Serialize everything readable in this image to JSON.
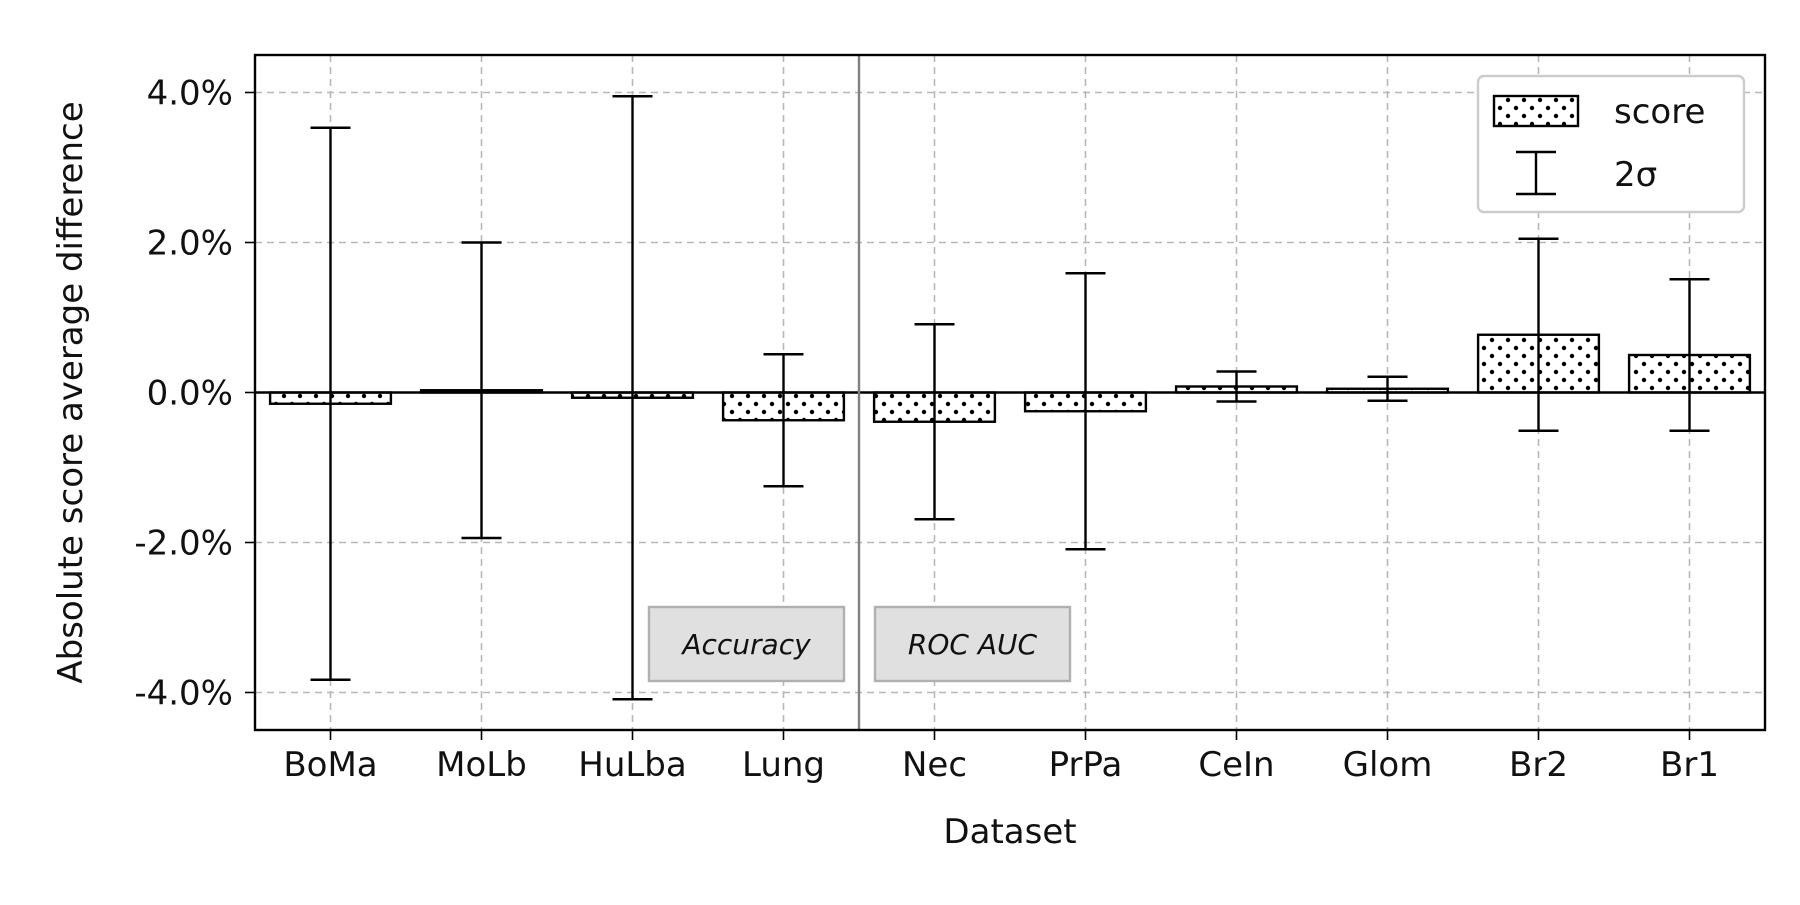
{
  "chart_data": {
    "type": "bar",
    "xlabel": "Dataset",
    "ylabel": "Absolute score average difference",
    "categories": [
      "BoMa",
      "MoLb",
      "HuLba",
      "Lung",
      "Nec",
      "PrPa",
      "CeIn",
      "Glom",
      "Br2",
      "Br1"
    ],
    "values": [
      -0.15,
      0.03,
      -0.07,
      -0.37,
      -0.39,
      -0.25,
      0.08,
      0.05,
      0.77,
      0.5
    ],
    "error_2sigma": [
      3.68,
      1.97,
      4.02,
      0.88,
      1.3,
      1.84,
      0.2,
      0.16,
      1.28,
      1.01
    ],
    "ylim": [
      -4.5,
      4.5
    ],
    "yticks": [
      -4.0,
      -2.0,
      0.0,
      2.0,
      4.0
    ],
    "ytick_labels": [
      "-4.0%",
      "-2.0%",
      "0.0%",
      "2.0%",
      "4.0%"
    ],
    "grid": true,
    "legend": {
      "placement": "top-right",
      "entries": [
        {
          "label": "score",
          "marker": "dotted-hatch-bar"
        },
        {
          "label": "2σ",
          "marker": "errorbar"
        }
      ]
    },
    "groups": [
      {
        "label": "Accuracy",
        "categories": [
          "BoMa",
          "MoLb",
          "HuLba",
          "Lung"
        ]
      },
      {
        "label": "ROC AUC",
        "categories": [
          "Nec",
          "PrPa",
          "CeIn",
          "Glom",
          "Br2",
          "Br1"
        ]
      }
    ]
  }
}
